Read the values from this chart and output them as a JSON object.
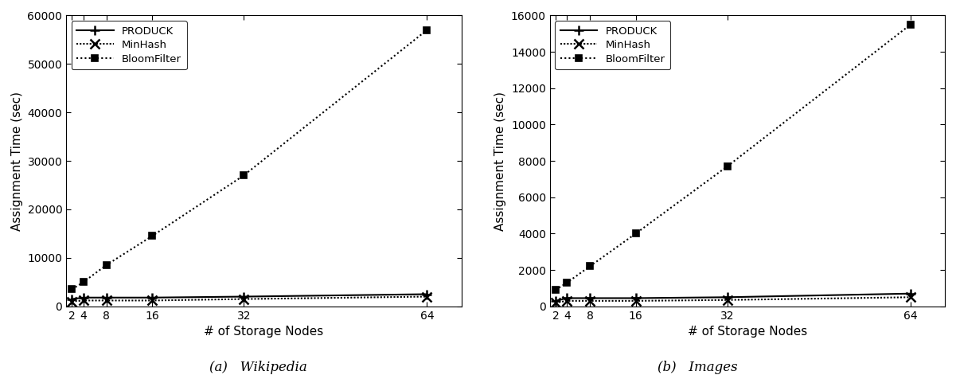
{
  "x": [
    2,
    4,
    8,
    16,
    32,
    64
  ],
  "wikipedia": {
    "bloomfilter": [
      3500,
      5000,
      8500,
      14500,
      27000,
      57000
    ],
    "produck": [
      1500,
      1800,
      1800,
      1800,
      2000,
      2500
    ],
    "minhash": [
      1000,
      1200,
      1200,
      1200,
      1500,
      2000
    ]
  },
  "images": {
    "bloomfilter": [
      900,
      1300,
      2200,
      4000,
      7700,
      15500
    ],
    "produck": [
      300,
      450,
      450,
      450,
      500,
      700
    ],
    "minhash": [
      200,
      300,
      300,
      300,
      350,
      500
    ]
  },
  "ylabel_left": "Assignment Time (sec)",
  "ylabel_right": "Assignment Time (sec)",
  "xlabel": "# of Storage Nodes",
  "caption_a": "(a)   Wikipedia",
  "caption_b": "(b)   Images",
  "ylim_left": [
    0,
    60000
  ],
  "ylim_right": [
    0,
    16000
  ],
  "yticks_left": [
    0,
    10000,
    20000,
    30000,
    40000,
    50000,
    60000
  ],
  "yticks_right": [
    0,
    2000,
    4000,
    6000,
    8000,
    10000,
    12000,
    14000,
    16000
  ],
  "xticks": [
    2,
    4,
    8,
    16,
    32,
    64
  ],
  "bg_color": "#ffffff",
  "line_color": "#000000"
}
